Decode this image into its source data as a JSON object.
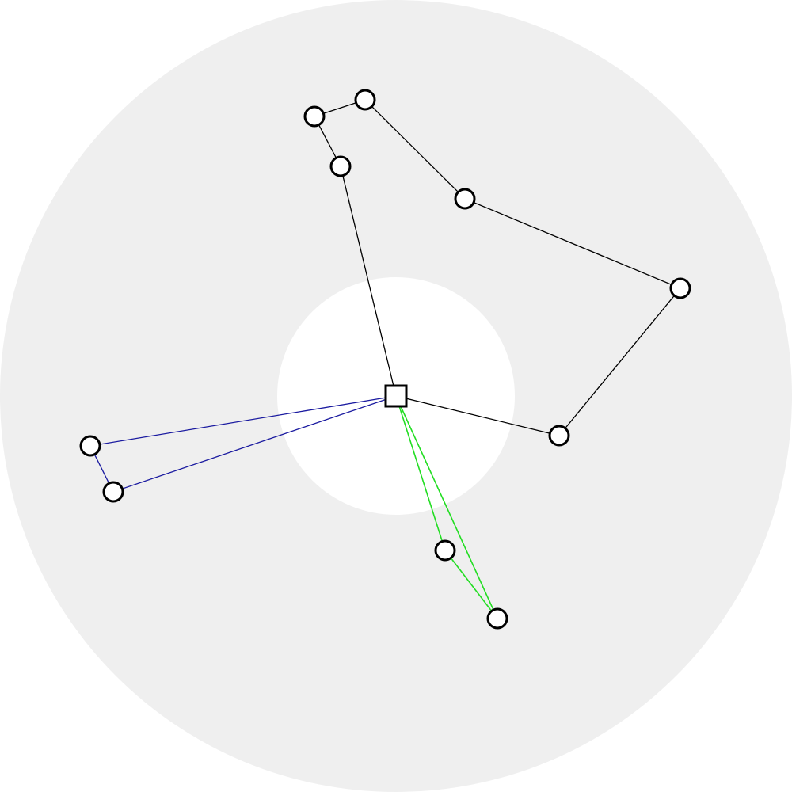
{
  "diagram": {
    "colors": {
      "page_background": "#ffffff",
      "outer_ring": "#efefef",
      "inner_disk": "#ffffff",
      "node_fill": "#ffffff",
      "node_stroke": "#000000",
      "depot_fill": "#ffffff",
      "depot_stroke": "#000000"
    },
    "depot": {
      "id": "depot"
    },
    "routes": [
      {
        "id": "route-black",
        "color": "#000000",
        "stops": [
          "depot",
          "n1",
          "n2",
          "n3",
          "n4",
          "n5",
          "n6",
          "depot"
        ]
      },
      {
        "id": "route-blue",
        "color": "#1a1aa0",
        "stops": [
          "depot",
          "n8",
          "n9",
          "depot"
        ]
      },
      {
        "id": "route-green",
        "color": "#22dd22",
        "stops": [
          "depot",
          "n10",
          "n11",
          "depot"
        ]
      }
    ],
    "nodes": [
      {
        "id": "depot",
        "kind": "depot"
      },
      {
        "id": "n1",
        "kind": "customer"
      },
      {
        "id": "n2",
        "kind": "customer"
      },
      {
        "id": "n3",
        "kind": "customer"
      },
      {
        "id": "n4",
        "kind": "customer"
      },
      {
        "id": "n5",
        "kind": "customer"
      },
      {
        "id": "n6",
        "kind": "customer"
      },
      {
        "id": "n7",
        "kind": "customer"
      },
      {
        "id": "n8",
        "kind": "customer"
      },
      {
        "id": "n9",
        "kind": "customer"
      },
      {
        "id": "n10",
        "kind": "customer"
      },
      {
        "id": "n11",
        "kind": "customer"
      }
    ]
  }
}
